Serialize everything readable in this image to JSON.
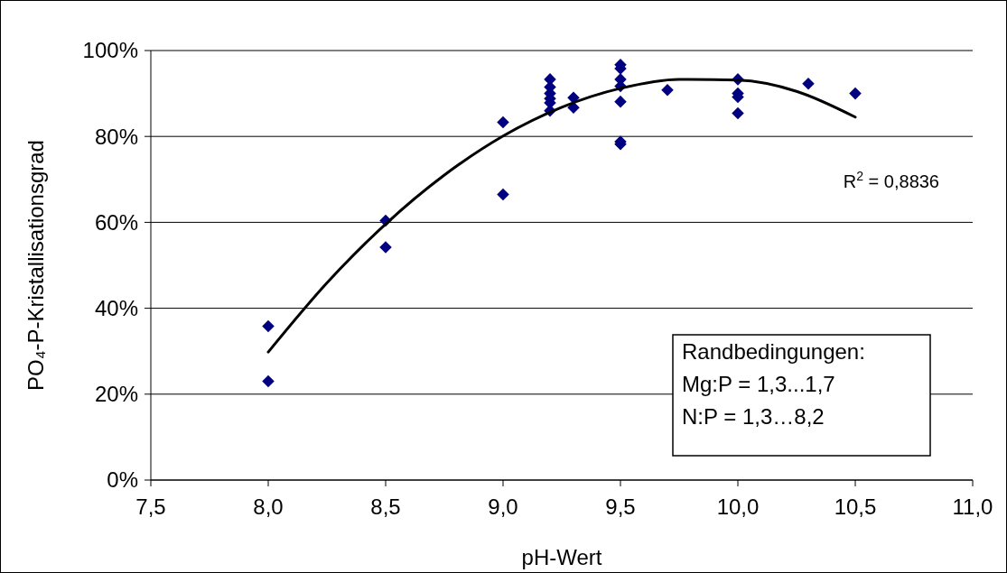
{
  "chart_data": {
    "type": "scatter",
    "xlabel": "pH-Wert",
    "ylabel": "PO₄-P-Kristallisationsgrad",
    "xlim": [
      7.5,
      11
    ],
    "xticks": [
      {
        "value": 7.5,
        "label": "7,5"
      },
      {
        "value": 8,
        "label": "8,0"
      },
      {
        "value": 8.5,
        "label": "8,5"
      },
      {
        "value": 9,
        "label": "9,0"
      },
      {
        "value": 9.5,
        "label": "9,5"
      },
      {
        "value": 10,
        "label": "10,0"
      },
      {
        "value": 10.5,
        "label": "10,5"
      },
      {
        "value": 11,
        "label": "11,0"
      }
    ],
    "ylim": [
      0,
      100
    ],
    "yticks": [
      {
        "value": 0,
        "label": "0%"
      },
      {
        "value": 20,
        "label": "20%"
      },
      {
        "value": 40,
        "label": "40%"
      },
      {
        "value": 60,
        "label": "60%"
      },
      {
        "value": 80,
        "label": "80%"
      },
      {
        "value": 100,
        "label": "100%"
      }
    ],
    "grid": "y",
    "series": [
      {
        "color": "#000080",
        "marker": "diamond",
        "x": [
          8,
          8,
          8.5,
          8.5,
          9,
          9,
          9.2,
          9.2,
          9.2,
          9.2,
          9.2,
          9.2,
          9.3,
          9.3,
          9.5,
          9.5,
          9.5,
          9.5,
          9.5,
          9.5,
          9.5,
          9.7,
          10,
          10,
          10,
          10,
          10.3,
          10.5
        ],
        "values": [
          35.8,
          23,
          60.4,
          54.2,
          83.3,
          66.5,
          93.3,
          91.5,
          90,
          88.8,
          87.8,
          86,
          89,
          86.7,
          96.7,
          95.8,
          93.3,
          91.7,
          88.1,
          78.8,
          78.2,
          90.8,
          93.3,
          90,
          89.2,
          85.4,
          92.3,
          90
        ]
      },
      {
        "type": "line",
        "color": "#000000",
        "marker": "none",
        "line_style": "solid",
        "x": [
          8,
          8.25,
          8.5,
          8.75,
          9,
          9.25,
          9.5,
          9.75,
          10,
          10.25,
          10.5
        ],
        "values": [
          29.8,
          45.9,
          59.6,
          71,
          80.1,
          86.8,
          91.2,
          93.3,
          93.1,
          90.5,
          84.5
        ]
      }
    ],
    "annotations": [
      "R$^{2}$ = 0,8836",
      "Randbedingungen:",
      "Mg:P = 1,3...1,7",
      "N:P = 1,3…8,2"
    ]
  }
}
